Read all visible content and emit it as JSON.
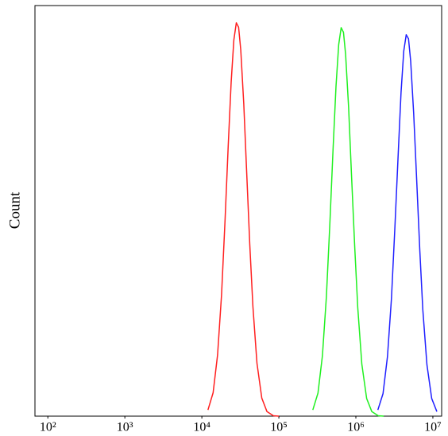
{
  "chart_data": {
    "type": "line",
    "y_label": "Count",
    "xscale": "log",
    "xlim": [
      68,
      13000000
    ],
    "ylim": [
      0,
      100
    ],
    "xticks": [
      {
        "value": 100,
        "label": "10²"
      },
      {
        "value": 1000,
        "label": "10³"
      },
      {
        "value": 10000,
        "label": "10⁴"
      },
      {
        "value": 100000,
        "label": "10⁵"
      },
      {
        "value": 1000000,
        "label": "10⁶"
      },
      {
        "value": 10000000,
        "label": "10⁷"
      }
    ],
    "series": [
      {
        "color": "#ff2020",
        "x": [
          12000,
          14000,
          16000,
          18000,
          20000,
          22000,
          24000,
          26000,
          28000,
          30000,
          32000,
          35000,
          38000,
          42000,
          46000,
          52000,
          60000,
          70000,
          85000,
          100000
        ],
        "values": [
          1.5,
          5.7,
          14.9,
          29.5,
          47.6,
          65.8,
          81.3,
          91.6,
          95.8,
          94.7,
          89.2,
          76.0,
          60.5,
          41.6,
          26.7,
          12.9,
          4.4,
          1.1,
          0.1,
          0
        ]
      },
      {
        "color": "#20f020",
        "x": [
          276000,
          322000,
          368000,
          414000,
          460000,
          506000,
          552000,
          598000,
          644000,
          690000,
          736000,
          805000,
          874000,
          966000,
          1058000,
          1196000,
          1380000,
          1610000,
          1955000,
          2300000
        ],
        "values": [
          1.5,
          5.6,
          14.7,
          29.1,
          47.0,
          65.0,
          80.3,
          90.5,
          94.6,
          93.5,
          88.1,
          75.1,
          59.7,
          41.1,
          26.4,
          12.7,
          4.3,
          1.1,
          0.1,
          0
        ]
      },
      {
        "color": "#2020ff",
        "x": [
          1932000,
          2254000,
          2576000,
          2898000,
          3220000,
          3542000,
          3864000,
          4186000,
          4508000,
          4830000,
          5152000,
          5635000,
          6118000,
          6762000,
          7406000,
          8372000,
          9660000,
          11270000
        ],
        "values": [
          1.5,
          5.5,
          14.5,
          28.6,
          46.2,
          63.8,
          78.9,
          88.9,
          92.9,
          91.9,
          86.5,
          73.7,
          58.7,
          40.4,
          25.9,
          12.5,
          4.3,
          1.1
        ]
      }
    ]
  }
}
